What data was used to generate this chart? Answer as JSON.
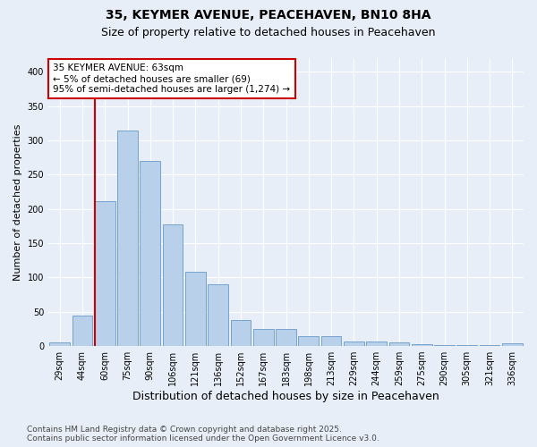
{
  "title_line1": "35, KEYMER AVENUE, PEACEHAVEN, BN10 8HA",
  "title_line2": "Size of property relative to detached houses in Peacehaven",
  "xlabel": "Distribution of detached houses by size in Peacehaven",
  "ylabel": "Number of detached properties",
  "categories": [
    "29sqm",
    "44sqm",
    "60sqm",
    "75sqm",
    "90sqm",
    "106sqm",
    "121sqm",
    "136sqm",
    "152sqm",
    "167sqm",
    "183sqm",
    "198sqm",
    "213sqm",
    "229sqm",
    "244sqm",
    "259sqm",
    "275sqm",
    "290sqm",
    "305sqm",
    "321sqm",
    "336sqm"
  ],
  "values": [
    5,
    44,
    212,
    315,
    270,
    178,
    108,
    90,
    38,
    25,
    25,
    15,
    15,
    7,
    6,
    5,
    3,
    2,
    2,
    1,
    4
  ],
  "bar_color": "#b8d0ea",
  "bar_edge_color": "#6699cc",
  "vline_color": "#cc0000",
  "annotation_text": "35 KEYMER AVENUE: 63sqm\n← 5% of detached houses are smaller (69)\n95% of semi-detached houses are larger (1,274) →",
  "annotation_box_facecolor": "#ffffff",
  "annotation_box_edgecolor": "#cc0000",
  "ylim": [
    0,
    420
  ],
  "yticks": [
    0,
    50,
    100,
    150,
    200,
    250,
    300,
    350,
    400
  ],
  "background_color": "#e8eef8",
  "grid_color": "#ffffff",
  "footer_text": "Contains HM Land Registry data © Crown copyright and database right 2025.\nContains public sector information licensed under the Open Government Licence v3.0.",
  "title_fontsize": 10,
  "subtitle_fontsize": 9,
  "xlabel_fontsize": 9,
  "ylabel_fontsize": 8,
  "tick_fontsize": 7,
  "annotation_fontsize": 7.5,
  "footer_fontsize": 6.5
}
